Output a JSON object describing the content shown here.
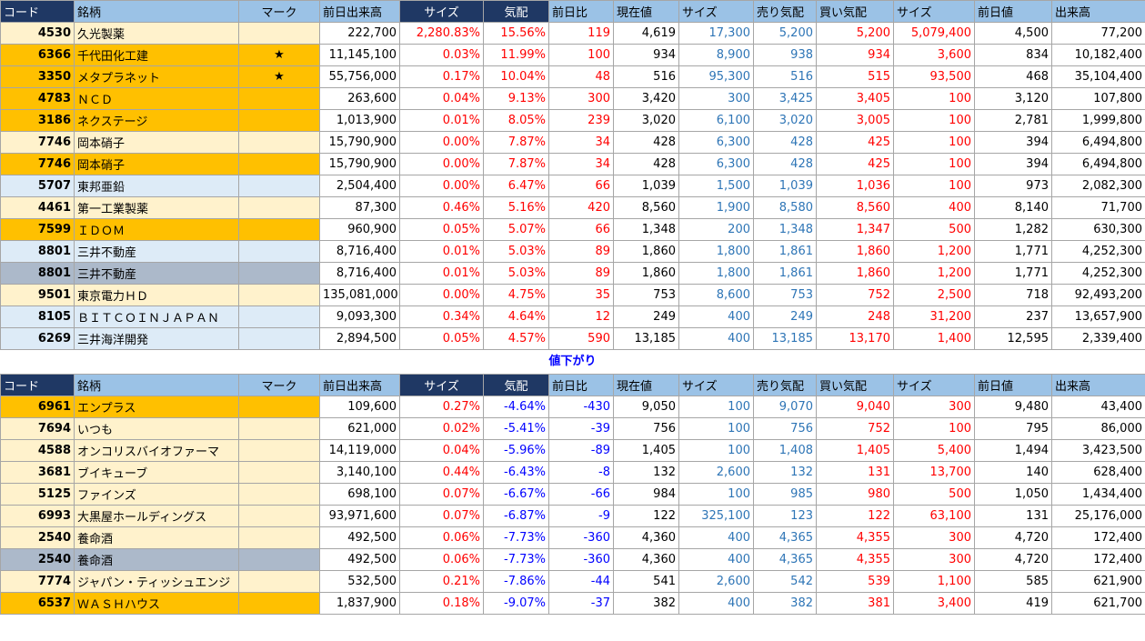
{
  "headers": [
    "コード",
    "銘柄",
    "マーク",
    "前日出来高",
    "サイズ",
    "気配",
    "前日比",
    "現在値",
    "サイズ",
    "売り気配",
    "買い気配",
    "サイズ",
    "前日値",
    "出来高"
  ],
  "section_label": "値下がり",
  "colors": {
    "cream": "#fff2cc",
    "orange": "#ffc000",
    "lightblue": "#ddebf7",
    "gray": "#acb9ca",
    "header": "#9bc2e6",
    "navy": "#1f3864"
  },
  "top_rows": [
    {
      "code": "4530",
      "name": "久光製薬",
      "mark": "",
      "prev_vol": "222,700",
      "size1": "2,280.83%",
      "kehai": "15.56%",
      "diff": "119",
      "price": "4,619",
      "size2": "17,300",
      "ask": "5,200",
      "bid": "5,200",
      "size3": "5,079,400",
      "prev": "4,500",
      "vol": "77,200",
      "bg": "cream"
    },
    {
      "code": "6366",
      "name": "千代田化工建",
      "mark": "★",
      "prev_vol": "11,145,100",
      "size1": "0.03%",
      "kehai": "11.99%",
      "diff": "100",
      "price": "934",
      "size2": "8,900",
      "ask": "938",
      "bid": "934",
      "size3": "3,600",
      "prev": "834",
      "vol": "10,182,400",
      "bg": "orange"
    },
    {
      "code": "3350",
      "name": "メタプラネット",
      "mark": "★",
      "prev_vol": "55,756,000",
      "size1": "0.17%",
      "kehai": "10.04%",
      "diff": "48",
      "price": "516",
      "size2": "95,300",
      "ask": "516",
      "bid": "515",
      "size3": "93,500",
      "prev": "468",
      "vol": "35,104,400",
      "bg": "orange"
    },
    {
      "code": "4783",
      "name": "ＮＣＤ",
      "mark": "",
      "prev_vol": "263,600",
      "size1": "0.04%",
      "kehai": "9.13%",
      "diff": "300",
      "price": "3,420",
      "size2": "300",
      "ask": "3,425",
      "bid": "3,405",
      "size3": "100",
      "prev": "3,120",
      "vol": "107,800",
      "bg": "orange"
    },
    {
      "code": "3186",
      "name": "ネクステージ",
      "mark": "",
      "prev_vol": "1,013,900",
      "size1": "0.01%",
      "kehai": "8.05%",
      "diff": "239",
      "price": "3,020",
      "size2": "6,100",
      "ask": "3,020",
      "bid": "3,005",
      "size3": "100",
      "prev": "2,781",
      "vol": "1,999,800",
      "bg": "orange"
    },
    {
      "code": "7746",
      "name": "岡本硝子",
      "mark": "",
      "prev_vol": "15,790,900",
      "size1": "0.00%",
      "kehai": "7.87%",
      "diff": "34",
      "price": "428",
      "size2": "6,300",
      "ask": "428",
      "bid": "425",
      "size3": "100",
      "prev": "394",
      "vol": "6,494,800",
      "bg": "cream"
    },
    {
      "code": "7746",
      "name": "岡本硝子",
      "mark": "",
      "prev_vol": "15,790,900",
      "size1": "0.00%",
      "kehai": "7.87%",
      "diff": "34",
      "price": "428",
      "size2": "6,300",
      "ask": "428",
      "bid": "425",
      "size3": "100",
      "prev": "394",
      "vol": "6,494,800",
      "bg": "orange"
    },
    {
      "code": "5707",
      "name": "東邦亜鉛",
      "mark": "",
      "prev_vol": "2,504,400",
      "size1": "0.00%",
      "kehai": "6.47%",
      "diff": "66",
      "price": "1,039",
      "size2": "1,500",
      "ask": "1,039",
      "bid": "1,036",
      "size3": "100",
      "prev": "973",
      "vol": "2,082,300",
      "bg": "lightblue"
    },
    {
      "code": "4461",
      "name": "第一工業製薬",
      "mark": "",
      "prev_vol": "87,300",
      "size1": "0.46%",
      "kehai": "5.16%",
      "diff": "420",
      "price": "8,560",
      "size2": "1,900",
      "ask": "8,580",
      "bid": "8,560",
      "size3": "400",
      "prev": "8,140",
      "vol": "71,700",
      "bg": "cream"
    },
    {
      "code": "7599",
      "name": "ＩＤＯＭ",
      "mark": "",
      "prev_vol": "960,900",
      "size1": "0.05%",
      "kehai": "5.07%",
      "diff": "66",
      "price": "1,348",
      "size2": "200",
      "ask": "1,348",
      "bid": "1,347",
      "size3": "500",
      "prev": "1,282",
      "vol": "630,300",
      "bg": "orange"
    },
    {
      "code": "8801",
      "name": "三井不動産",
      "mark": "",
      "prev_vol": "8,716,400",
      "size1": "0.01%",
      "kehai": "5.03%",
      "diff": "89",
      "price": "1,860",
      "size2": "1,800",
      "ask": "1,861",
      "bid": "1,860",
      "size3": "1,200",
      "prev": "1,771",
      "vol": "4,252,300",
      "bg": "lightblue"
    },
    {
      "code": "8801",
      "name": "三井不動産",
      "mark": "",
      "prev_vol": "8,716,400",
      "size1": "0.01%",
      "kehai": "5.03%",
      "diff": "89",
      "price": "1,860",
      "size2": "1,800",
      "ask": "1,861",
      "bid": "1,860",
      "size3": "1,200",
      "prev": "1,771",
      "vol": "4,252,300",
      "bg": "gray"
    },
    {
      "code": "9501",
      "name": "東京電力ＨＤ",
      "mark": "",
      "prev_vol": "135,081,000",
      "size1": "0.00%",
      "kehai": "4.75%",
      "diff": "35",
      "price": "753",
      "size2": "8,600",
      "ask": "753",
      "bid": "752",
      "size3": "2,500",
      "prev": "718",
      "vol": "92,493,200",
      "bg": "cream"
    },
    {
      "code": "8105",
      "name": "ＢＩＴＣＯＩＮＪＡＰＡＮ",
      "mark": "",
      "prev_vol": "9,093,300",
      "size1": "0.34%",
      "kehai": "4.64%",
      "diff": "12",
      "price": "249",
      "size2": "400",
      "ask": "249",
      "bid": "248",
      "size3": "31,200",
      "prev": "237",
      "vol": "13,657,900",
      "bg": "lightblue"
    },
    {
      "code": "6269",
      "name": "三井海洋開発",
      "mark": "",
      "prev_vol": "2,894,500",
      "size1": "0.05%",
      "kehai": "4.57%",
      "diff": "590",
      "price": "13,185",
      "size2": "400",
      "ask": "13,185",
      "bid": "13,170",
      "size3": "1,400",
      "prev": "12,595",
      "vol": "2,339,400",
      "bg": "lightblue"
    }
  ],
  "bottom_rows": [
    {
      "code": "6961",
      "name": "エンプラス",
      "mark": "",
      "prev_vol": "109,600",
      "size1": "0.27%",
      "kehai": "-4.64%",
      "diff": "-430",
      "price": "9,050",
      "size2": "100",
      "ask": "9,070",
      "bid": "9,040",
      "size3": "300",
      "prev": "9,480",
      "vol": "43,400",
      "bg": "orange"
    },
    {
      "code": "7694",
      "name": "いつも",
      "mark": "",
      "prev_vol": "621,000",
      "size1": "0.02%",
      "kehai": "-5.41%",
      "diff": "-39",
      "price": "756",
      "size2": "100",
      "ask": "756",
      "bid": "752",
      "size3": "100",
      "prev": "795",
      "vol": "86,000",
      "bg": "cream"
    },
    {
      "code": "4588",
      "name": "オンコリスバイオファーマ",
      "mark": "",
      "prev_vol": "14,119,000",
      "size1": "0.04%",
      "kehai": "-5.96%",
      "diff": "-89",
      "price": "1,405",
      "size2": "100",
      "ask": "1,408",
      "bid": "1,405",
      "size3": "5,400",
      "prev": "1,494",
      "vol": "3,423,500",
      "bg": "cream"
    },
    {
      "code": "3681",
      "name": "ブイキューブ",
      "mark": "",
      "prev_vol": "3,140,100",
      "size1": "0.44%",
      "kehai": "-6.43%",
      "diff": "-8",
      "price": "132",
      "size2": "2,600",
      "ask": "132",
      "bid": "131",
      "size3": "13,700",
      "prev": "140",
      "vol": "628,400",
      "bg": "cream"
    },
    {
      "code": "5125",
      "name": "ファインズ",
      "mark": "",
      "prev_vol": "698,100",
      "size1": "0.07%",
      "kehai": "-6.67%",
      "diff": "-66",
      "price": "984",
      "size2": "100",
      "ask": "985",
      "bid": "980",
      "size3": "500",
      "prev": "1,050",
      "vol": "1,434,400",
      "bg": "cream"
    },
    {
      "code": "6993",
      "name": "大黒屋ホールディングス",
      "mark": "",
      "prev_vol": "93,971,600",
      "size1": "0.07%",
      "kehai": "-6.87%",
      "diff": "-9",
      "price": "122",
      "size2": "325,100",
      "ask": "123",
      "bid": "122",
      "size3": "63,100",
      "prev": "131",
      "vol": "25,176,000",
      "bg": "cream"
    },
    {
      "code": "2540",
      "name": "養命酒",
      "mark": "",
      "prev_vol": "492,500",
      "size1": "0.06%",
      "kehai": "-7.73%",
      "diff": "-360",
      "price": "4,360",
      "size2": "400",
      "ask": "4,365",
      "bid": "4,355",
      "size3": "300",
      "prev": "4,720",
      "vol": "172,400",
      "bg": "cream"
    },
    {
      "code": "2540",
      "name": "養命酒",
      "mark": "",
      "prev_vol": "492,500",
      "size1": "0.06%",
      "kehai": "-7.73%",
      "diff": "-360",
      "price": "4,360",
      "size2": "400",
      "ask": "4,365",
      "bid": "4,355",
      "size3": "300",
      "prev": "4,720",
      "vol": "172,400",
      "bg": "gray"
    },
    {
      "code": "7774",
      "name": "ジャパン・ティッシュエンジ",
      "mark": "",
      "prev_vol": "532,500",
      "size1": "0.21%",
      "kehai": "-7.86%",
      "diff": "-44",
      "price": "541",
      "size2": "2,600",
      "ask": "542",
      "bid": "539",
      "size3": "1,100",
      "prev": "585",
      "vol": "621,900",
      "bg": "cream"
    },
    {
      "code": "6537",
      "name": "ＷＡＳＨハウス",
      "mark": "",
      "prev_vol": "1,837,900",
      "size1": "0.18%",
      "kehai": "-9.07%",
      "diff": "-37",
      "price": "382",
      "size2": "400",
      "ask": "382",
      "bid": "381",
      "size3": "3,400",
      "prev": "419",
      "vol": "621,700",
      "bg": "orange"
    }
  ]
}
